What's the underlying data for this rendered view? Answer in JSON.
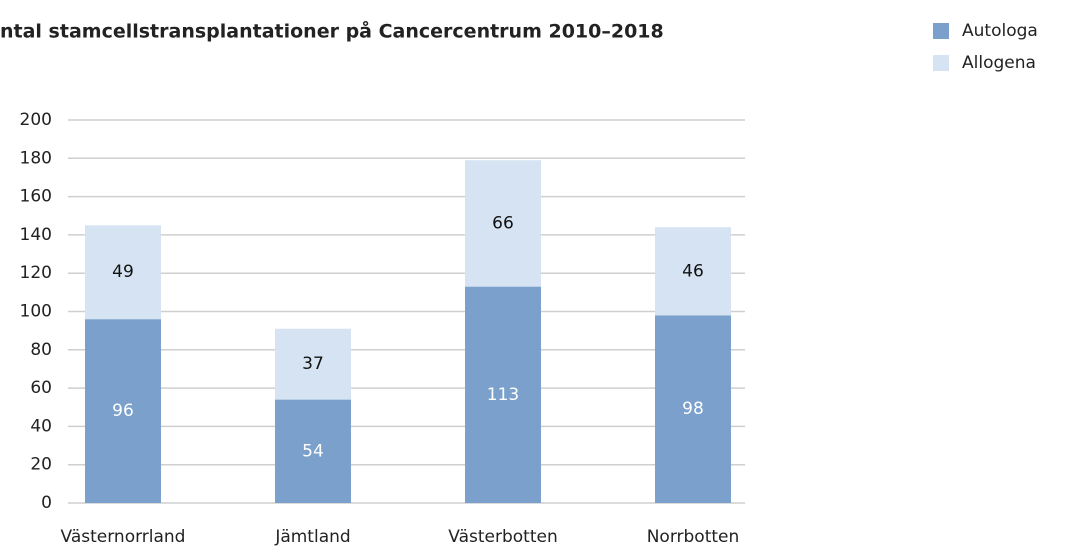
{
  "chart_data": {
    "type": "stacked_bar",
    "title": "ntal stamcellstransplantationer på Cancercentrum 2010–2018",
    "categories": [
      "Västernorrland",
      "Jämtland",
      "Västerbotten",
      "Norrbotten"
    ],
    "series": [
      {
        "name": "Autologa",
        "color": "#7aa0cb",
        "values": [
          96,
          54,
          113,
          98
        ]
      },
      {
        "name": "Allogena",
        "color": "#d6e3f2",
        "values": [
          49,
          37,
          66,
          46
        ]
      }
    ],
    "ylim": [
      0,
      200
    ],
    "yticks": [
      0,
      20,
      40,
      60,
      80,
      100,
      120,
      140,
      160,
      180,
      200
    ],
    "grid": true,
    "legend": "top-right"
  }
}
